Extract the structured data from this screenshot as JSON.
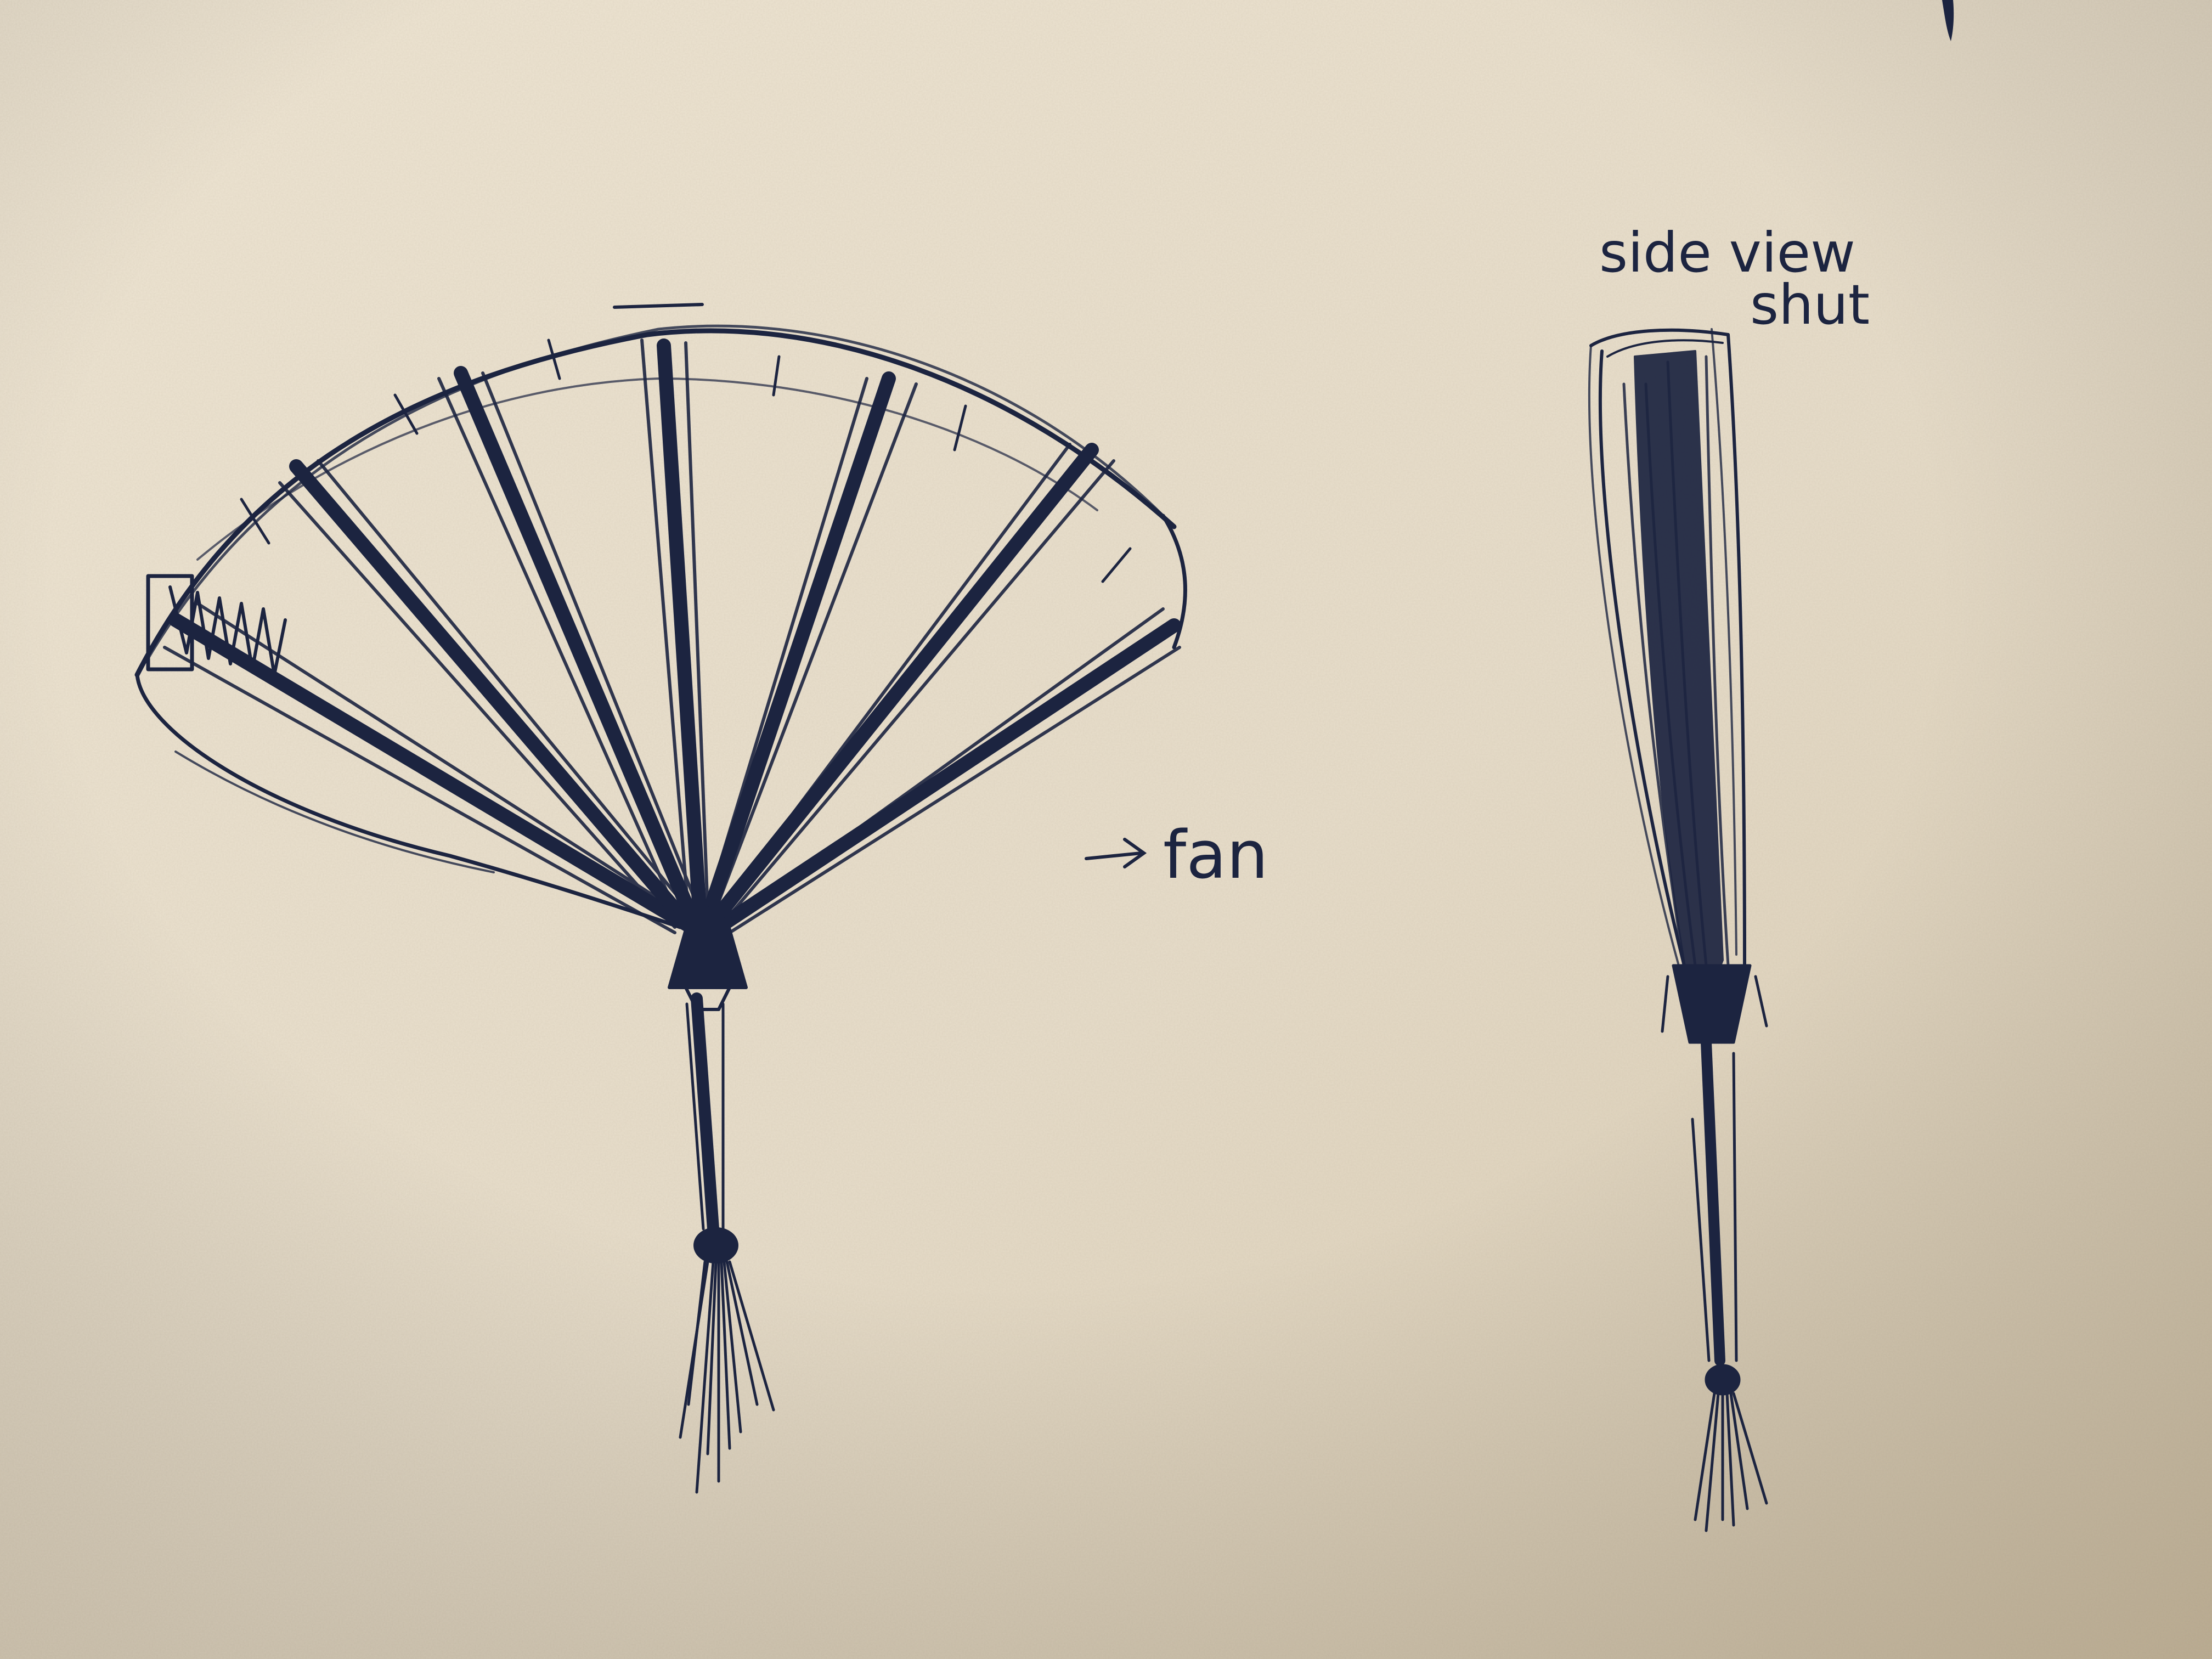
{
  "photo": {
    "subject": "pen sketch of a folding hand fan on textured paper",
    "colors": {
      "paper_light": "#efe6d4",
      "paper_mid": "#e3d7c1",
      "paper_shadow": "#cfc1a8",
      "ink": "#1c2440"
    }
  },
  "annotations": {
    "fan_label": "fan",
    "side_view_line1": "side view",
    "side_view_line2": "shut"
  }
}
